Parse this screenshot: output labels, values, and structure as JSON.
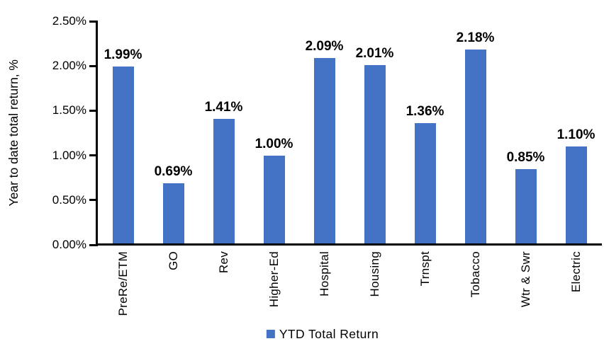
{
  "chart_data": {
    "type": "bar",
    "title": "",
    "xlabel": "",
    "ylabel": "Year to date total return, %",
    "categories": [
      "PreRe/ETM",
      "GO",
      "Rev",
      "Higher-Ed",
      "Hospital",
      "Housing",
      "Trnspt",
      "Tobacco",
      "Wtr & Swr",
      "Electric"
    ],
    "series": [
      {
        "name": "YTD Total Return",
        "values": [
          1.99,
          0.69,
          1.41,
          1.0,
          2.09,
          2.01,
          1.36,
          2.18,
          0.85,
          1.1
        ],
        "value_labels": [
          "1.99%",
          "0.69%",
          "1.41%",
          "1.00%",
          "2.09%",
          "2.01%",
          "1.36%",
          "2.18%",
          "0.85%",
          "1.10%"
        ],
        "color": "#4472C4"
      }
    ],
    "ylim": [
      0,
      2.5
    ],
    "ytick_step": 0.5,
    "ytick_labels": [
      "0.00%",
      "0.50%",
      "1.00%",
      "1.50%",
      "2.00%",
      "2.50%"
    ],
    "grid": false,
    "legend": {
      "position": "bottom-center",
      "label": "YTD Total Return",
      "swatch_color": "#4472C4"
    },
    "axis_color": "#000000",
    "text_color": "#000000"
  }
}
